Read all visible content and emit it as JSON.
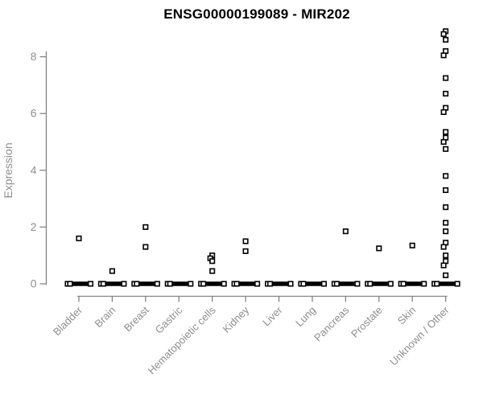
{
  "title": "ENSG00000199089 - MIR202",
  "chart_data": {
    "type": "scatter",
    "title": "ENSG00000199089 - MIR202",
    "xlabel": "",
    "ylabel": "Expression",
    "ylim": [
      0,
      9.2
    ],
    "yticks": [
      0,
      2,
      4,
      6,
      8
    ],
    "grid": false,
    "legend": false,
    "marker": "open-square",
    "colors": {
      "point": "#000000",
      "axis": "#848484",
      "tick_text": "#8e8e8e",
      "title_text": "#000000"
    },
    "categories": [
      "Bladder",
      "Brain",
      "Breast",
      "Gastric",
      "Hematopoietic cells",
      "Kidney",
      "Liver",
      "Lung",
      "Pancreas",
      "Prostate",
      "Skin",
      "Unknown / Other"
    ],
    "series": [
      {
        "category": "Bladder",
        "zero_cluster": true,
        "nonzero_values": [
          1.6
        ]
      },
      {
        "category": "Brain",
        "zero_cluster": true,
        "nonzero_values": [
          0.45
        ]
      },
      {
        "category": "Breast",
        "zero_cluster": true,
        "nonzero_values": [
          2.0,
          1.3
        ]
      },
      {
        "category": "Gastric",
        "zero_cluster": true,
        "nonzero_values": []
      },
      {
        "category": "Hematopoietic cells",
        "zero_cluster": true,
        "nonzero_values": [
          1.0,
          0.9,
          0.8,
          0.45
        ]
      },
      {
        "category": "Kidney",
        "zero_cluster": true,
        "nonzero_values": [
          1.5,
          1.15
        ]
      },
      {
        "category": "Liver",
        "zero_cluster": true,
        "nonzero_values": []
      },
      {
        "category": "Lung",
        "zero_cluster": true,
        "nonzero_values": []
      },
      {
        "category": "Pancreas",
        "zero_cluster": true,
        "nonzero_values": [
          1.85
        ]
      },
      {
        "category": "Prostate",
        "zero_cluster": true,
        "nonzero_values": [
          1.25
        ]
      },
      {
        "category": "Skin",
        "zero_cluster": true,
        "nonzero_values": [
          1.35
        ]
      },
      {
        "category": "Unknown / Other",
        "zero_cluster": true,
        "nonzero_values": [
          8.9,
          8.8,
          8.6,
          8.2,
          8.05,
          7.25,
          6.7,
          6.2,
          6.05,
          5.35,
          5.15,
          5.0,
          4.75,
          3.8,
          3.3,
          2.7,
          2.15,
          1.85,
          1.45,
          1.3,
          1.0,
          0.8,
          0.65,
          0.3
        ]
      }
    ]
  }
}
